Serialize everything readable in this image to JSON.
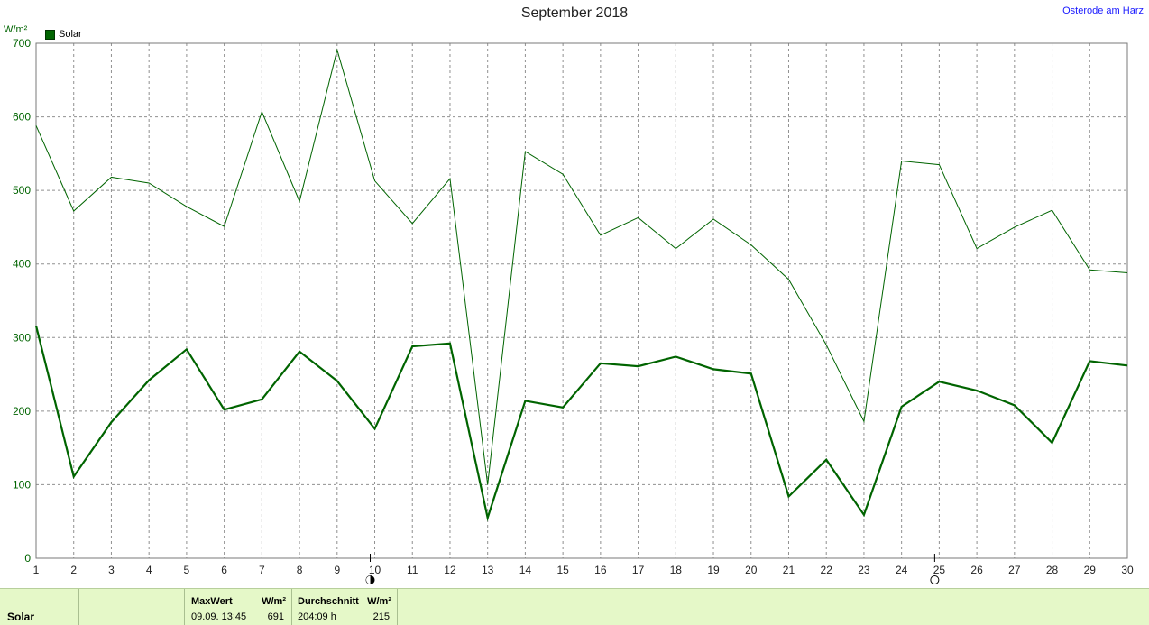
{
  "title": "September 2018",
  "location": "Osterode am Harz",
  "legend": {
    "label": "Solar",
    "color": "#006400"
  },
  "chart_data": {
    "type": "line",
    "title": "September 2018",
    "ylabel": "W/m²",
    "xlabel": "",
    "ylim": [
      0,
      700
    ],
    "xlim": [
      1,
      30
    ],
    "y_ticks": [
      0,
      100,
      200,
      300,
      400,
      500,
      600,
      700
    ],
    "x": [
      1,
      2,
      3,
      4,
      5,
      6,
      7,
      8,
      9,
      10,
      11,
      12,
      13,
      14,
      15,
      16,
      17,
      18,
      19,
      20,
      21,
      22,
      23,
      24,
      25,
      26,
      27,
      28,
      29,
      30
    ],
    "grid": true,
    "legend_position": "top-left",
    "series": [
      {
        "name": "Solar",
        "color": "#006400",
        "line": "thin",
        "values": [
          588,
          472,
          518,
          510,
          478,
          451,
          607,
          485,
          691,
          513,
          455,
          516,
          100,
          553,
          522,
          439,
          463,
          421,
          461,
          426,
          379,
          290,
          186,
          540,
          535,
          421,
          450,
          473,
          392,
          388
        ]
      },
      {
        "name": "Solar",
        "color": "#006400",
        "line": "thick",
        "values": [
          316,
          111,
          185,
          242,
          284,
          202,
          216,
          281,
          241,
          176,
          288,
          292,
          55,
          214,
          205,
          265,
          261,
          274,
          257,
          251,
          84,
          134,
          59,
          206,
          240,
          228,
          208,
          157,
          268,
          262
        ]
      }
    ],
    "moon_markers": [
      {
        "day": 10,
        "phase": "new"
      },
      {
        "day": 25,
        "phase": "full"
      }
    ]
  },
  "panel": {
    "name": "Solar",
    "max_header": "MaxWert",
    "max_unit": "W/m²",
    "max_time": "09.09.  13:45",
    "max_value": "691",
    "avg_header": "Durchschnitt",
    "avg_unit": "W/m²",
    "avg_time": "204:09 h",
    "avg_value": "215"
  }
}
